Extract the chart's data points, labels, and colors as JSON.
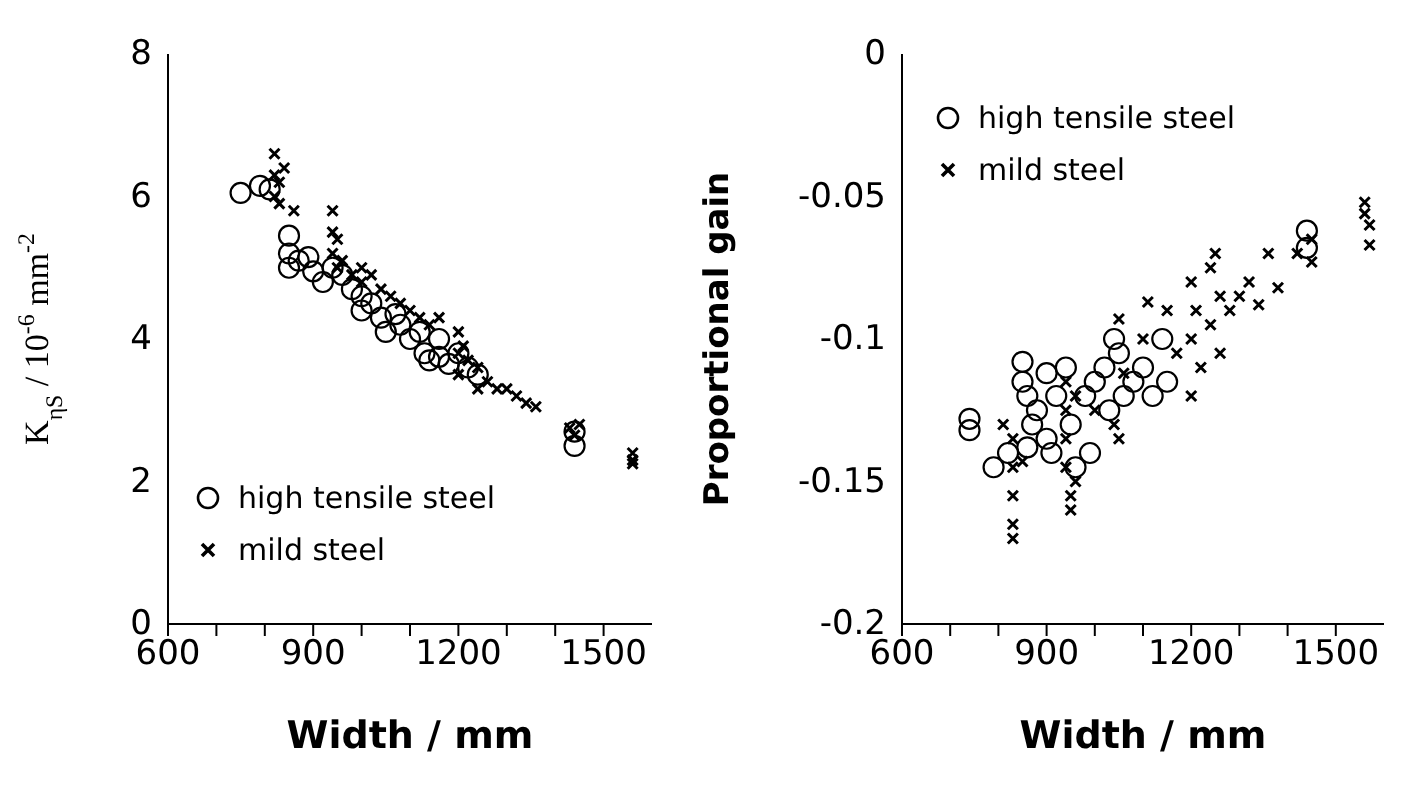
{
  "chart_data": [
    {
      "type": "scatter",
      "xlabel": "Width  / mm",
      "ylabel": "K$_{ηS}$  /  10$^{-6}$ mm$^{-2}$",
      "xlim": [
        600,
        1600
      ],
      "xticks": [
        600,
        {
          "value": 700,
          "label": null
        },
        {
          "value": 800,
          "label": null
        },
        900,
        {
          "value": 1000,
          "label": null
        },
        {
          "value": 1100,
          "label": null
        },
        1200,
        {
          "value": 1300,
          "label": null
        },
        {
          "value": 1400,
          "label": null
        },
        1500
      ],
      "ylim": [
        0,
        8
      ],
      "yticks": [
        0,
        2,
        4,
        6,
        8
      ],
      "grid": false,
      "legend": "bottom left",
      "series": [
        {
          "name": "high tensile steel",
          "color": "#000000",
          "marker": "circle",
          "x": [
            750,
            790,
            810,
            850,
            850,
            850,
            870,
            890,
            900,
            920,
            940,
            960,
            980,
            1000,
            1000,
            1020,
            1040,
            1050,
            1070,
            1080,
            1100,
            1120,
            1130,
            1140,
            1160,
            1160,
            1180,
            1200,
            1220,
            1240,
            1440,
            1440
          ],
          "values": [
            6.05,
            6.15,
            6.1,
            5.45,
            5.2,
            5.0,
            5.1,
            5.15,
            4.95,
            4.8,
            5.0,
            4.9,
            4.7,
            4.6,
            4.4,
            4.5,
            4.3,
            4.1,
            4.35,
            4.2,
            4.0,
            4.1,
            3.8,
            3.7,
            4.0,
            3.75,
            3.65,
            3.8,
            3.6,
            3.5,
            2.5,
            2.7
          ]
        },
        {
          "name": "mild steel",
          "color": "#000000",
          "marker": "cross",
          "x": [
            820,
            820,
            820,
            830,
            840,
            830,
            860,
            940,
            940,
            940,
            950,
            950,
            960,
            980,
            1000,
            1000,
            1020,
            1040,
            1060,
            1080,
            1100,
            1120,
            1140,
            1160,
            1200,
            1200,
            1200,
            1210,
            1220,
            1240,
            1240,
            1260,
            1280,
            1300,
            1320,
            1340,
            1360,
            1430,
            1440,
            1450,
            1560,
            1560,
            1560
          ],
          "values": [
            6.6,
            6.3,
            6.0,
            6.2,
            6.4,
            5.9,
            5.8,
            5.8,
            5.5,
            5.2,
            5.4,
            5.0,
            5.1,
            4.9,
            5.0,
            4.8,
            4.9,
            4.7,
            4.6,
            4.5,
            4.4,
            4.3,
            4.2,
            4.3,
            4.1,
            3.8,
            3.5,
            3.9,
            3.7,
            3.6,
            3.3,
            3.4,
            3.3,
            3.3,
            3.2,
            3.1,
            3.05,
            2.75,
            2.65,
            2.8,
            2.4,
            2.3,
            2.25
          ]
        }
      ]
    },
    {
      "type": "scatter",
      "xlabel": "Width  / mm",
      "ylabel": "Proportional gain",
      "xlim": [
        600,
        1600
      ],
      "xticks": [
        600,
        {
          "value": 700,
          "label": null
        },
        {
          "value": 800,
          "label": null
        },
        900,
        {
          "value": 1000,
          "label": null
        },
        {
          "value": 1100,
          "label": null
        },
        1200,
        {
          "value": 1300,
          "label": null
        },
        {
          "value": 1400,
          "label": null
        },
        1500
      ],
      "ylim": [
        -0.2,
        0
      ],
      "yticks": [
        -0.2,
        -0.15,
        -0.1,
        -0.05,
        0
      ],
      "grid": false,
      "legend": "top left",
      "series": [
        {
          "name": "high tensile steel",
          "color": "#000000",
          "marker": "circle",
          "x": [
            740,
            740,
            790,
            820,
            850,
            850,
            860,
            860,
            870,
            880,
            900,
            900,
            910,
            920,
            940,
            950,
            960,
            980,
            990,
            1000,
            1020,
            1030,
            1040,
            1050,
            1060,
            1080,
            1100,
            1120,
            1140,
            1150,
            1440,
            1440
          ],
          "values": [
            -0.128,
            -0.132,
            -0.145,
            -0.14,
            -0.108,
            -0.115,
            -0.12,
            -0.138,
            -0.13,
            -0.125,
            -0.112,
            -0.135,
            -0.14,
            -0.12,
            -0.11,
            -0.13,
            -0.145,
            -0.12,
            -0.14,
            -0.115,
            -0.11,
            -0.125,
            -0.1,
            -0.105,
            -0.12,
            -0.115,
            -0.11,
            -0.12,
            -0.1,
            -0.115,
            -0.062,
            -0.068
          ]
        },
        {
          "name": "mild steel",
          "color": "#000000",
          "marker": "cross",
          "x": [
            810,
            830,
            830,
            830,
            830,
            830,
            850,
            940,
            940,
            940,
            940,
            950,
            950,
            960,
            960,
            1000,
            1040,
            1050,
            1050,
            1060,
            1100,
            1110,
            1150,
            1170,
            1200,
            1200,
            1200,
            1210,
            1220,
            1240,
            1240,
            1250,
            1260,
            1260,
            1280,
            1300,
            1320,
            1340,
            1360,
            1380,
            1420,
            1450,
            1450,
            1560,
            1560,
            1570,
            1570
          ],
          "values": [
            -0.13,
            -0.135,
            -0.145,
            -0.155,
            -0.165,
            -0.17,
            -0.143,
            -0.115,
            -0.125,
            -0.135,
            -0.145,
            -0.155,
            -0.16,
            -0.12,
            -0.15,
            -0.125,
            -0.13,
            -0.135,
            -0.093,
            -0.112,
            -0.1,
            -0.087,
            -0.09,
            -0.105,
            -0.12,
            -0.1,
            -0.08,
            -0.09,
            -0.11,
            -0.075,
            -0.095,
            -0.07,
            -0.085,
            -0.105,
            -0.09,
            -0.085,
            -0.08,
            -0.088,
            -0.07,
            -0.082,
            -0.07,
            -0.065,
            -0.073,
            -0.052,
            -0.056,
            -0.06,
            -0.067
          ]
        }
      ]
    }
  ]
}
